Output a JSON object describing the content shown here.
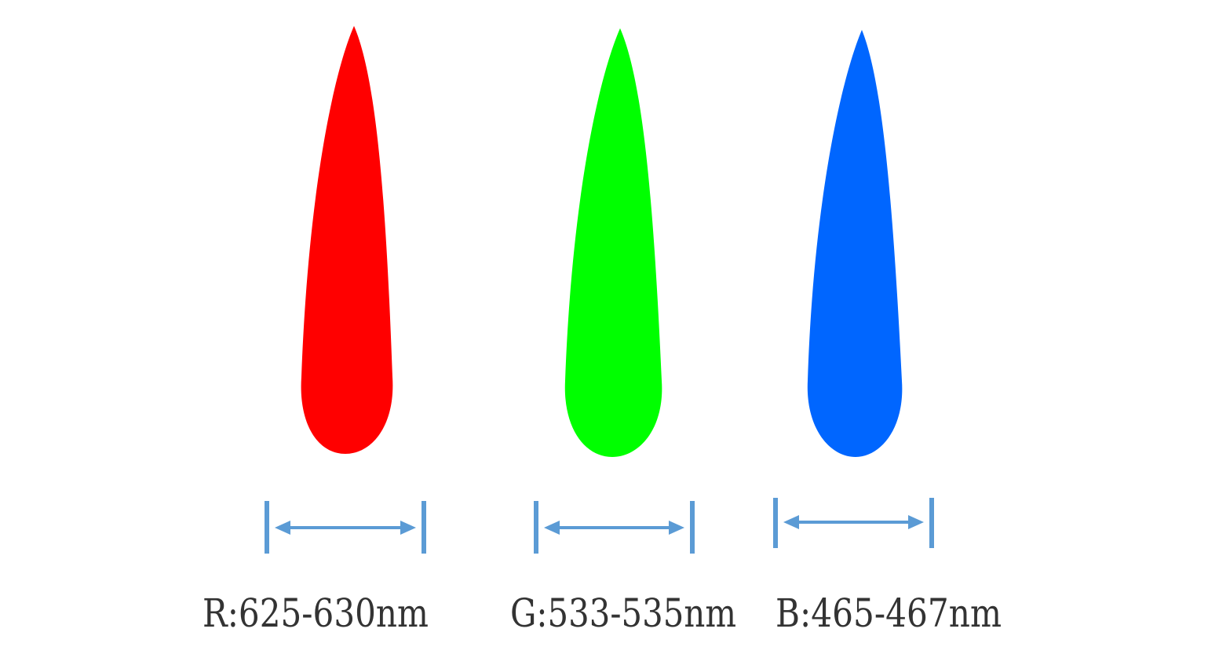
{
  "diagram": {
    "arrow_color": "#5b9bd5",
    "items": [
      {
        "channel": "R",
        "label": "R:625-630nm",
        "color": "#ff0000"
      },
      {
        "channel": "G",
        "label": "G:533-535nm",
        "color": "#00ff00"
      },
      {
        "channel": "B",
        "label": "B:465-467nm",
        "color": "#0066ff"
      }
    ]
  }
}
